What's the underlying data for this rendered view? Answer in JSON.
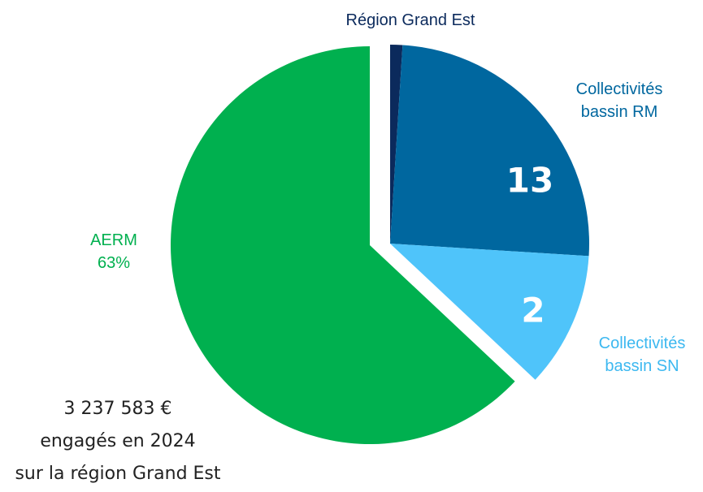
{
  "chart_data": {
    "type": "pie",
    "categories": [
      "Région Grand Est",
      "Collectivités bassin RM",
      "Collectivités bassin SN",
      "AERM"
    ],
    "values": [
      1,
      25,
      11,
      63
    ],
    "value_labels": [
      null,
      null,
      null,
      "63%"
    ],
    "inner_labels": [
      null,
      13,
      2,
      null
    ],
    "colors": [
      "#0b2a5c",
      "#00679f",
      "#4fc4fa",
      "#00b04f"
    ],
    "label_colors": [
      "#0b2a5c",
      "#00679f",
      "#3cb8f0",
      "#00b04f"
    ],
    "note": [
      "3 237 583 €",
      "engagés en 2024",
      "sur la région Grand Est"
    ]
  }
}
